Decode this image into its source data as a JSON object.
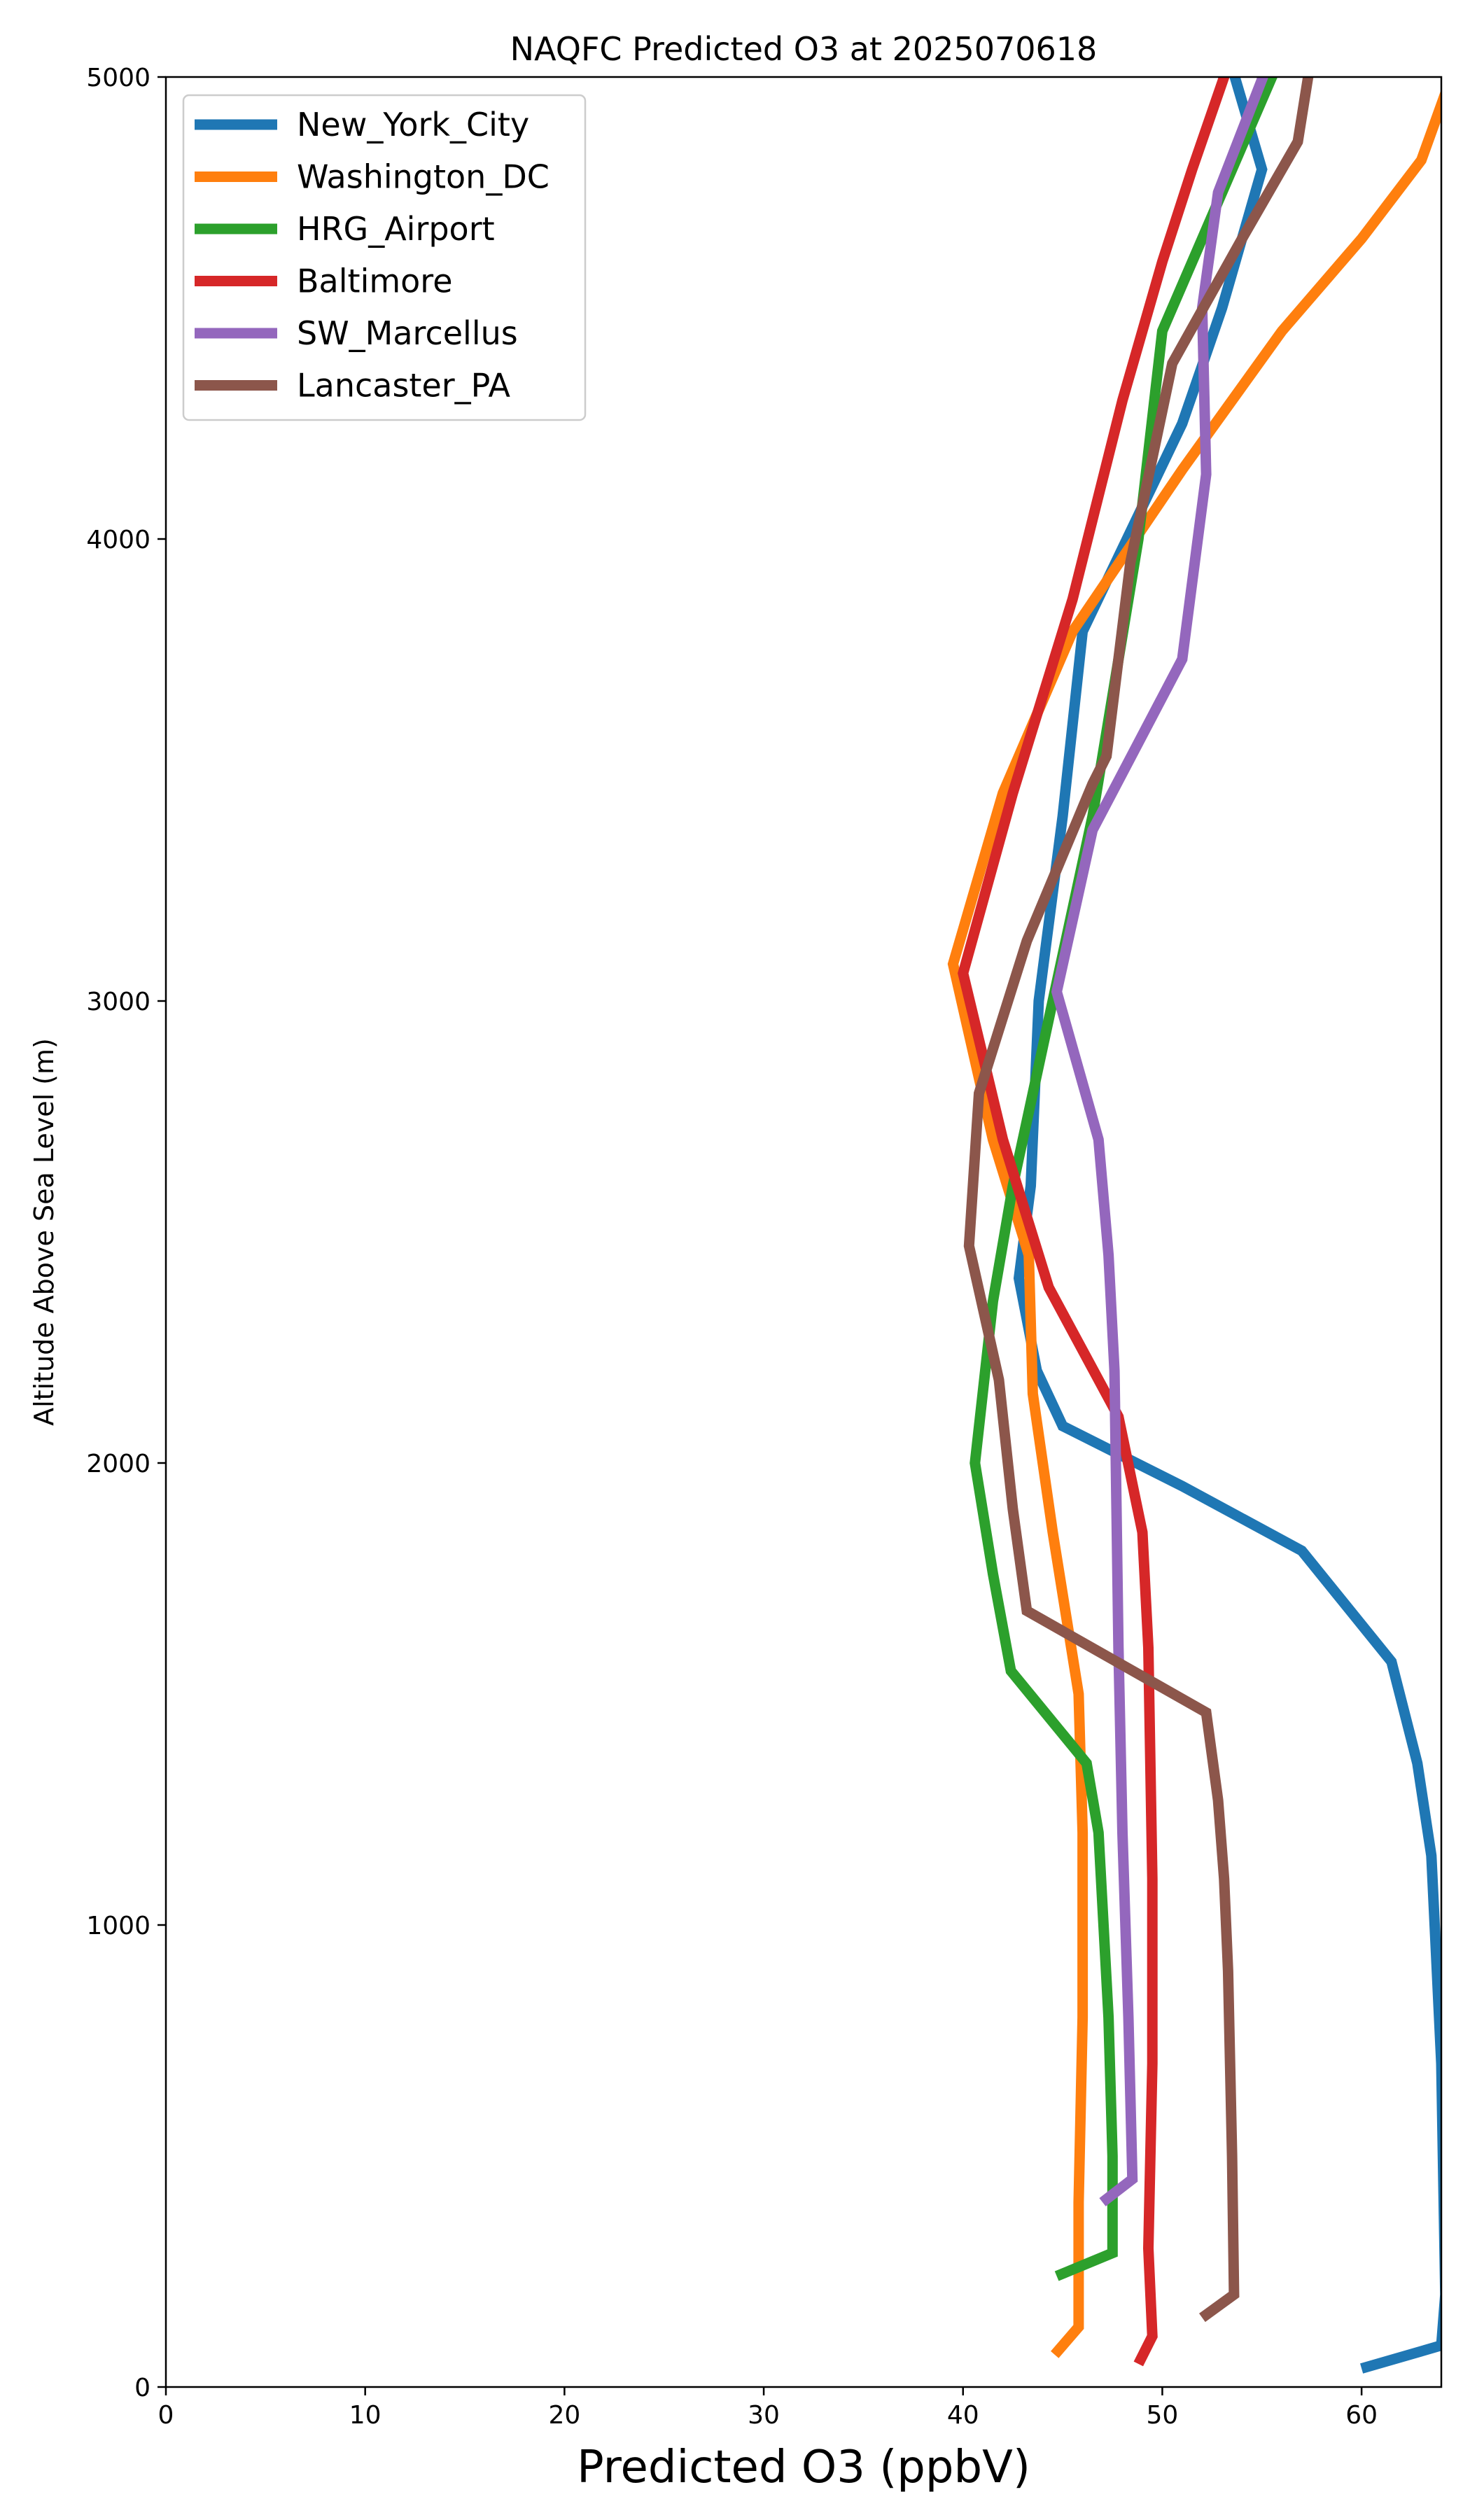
{
  "chart_data": {
    "type": "line",
    "title": "NAQFC Predicted O3 at 2025070618",
    "xlabel": "Predicted O3 (ppbV)",
    "ylabel": "Altitude Above Sea Level (m)",
    "xlim": [
      0,
      64
    ],
    "ylim": [
      0,
      5000
    ],
    "xticks": [
      0,
      10,
      20,
      30,
      40,
      50,
      60
    ],
    "yticks": [
      0,
      1000,
      2000,
      3000,
      4000,
      5000
    ],
    "grid": false,
    "legend_position": "top-left",
    "series": [
      {
        "name": "New_York_City",
        "color": "#1f77b4",
        "points": [
          [
            60.0,
            40
          ],
          [
            64.0,
            90
          ],
          [
            64.2,
            200
          ],
          [
            64.0,
            700
          ],
          [
            63.5,
            1150
          ],
          [
            62.8,
            1350
          ],
          [
            61.5,
            1570
          ],
          [
            57.0,
            1810
          ],
          [
            51.0,
            1950
          ],
          [
            45.0,
            2080
          ],
          [
            43.7,
            2200
          ],
          [
            42.8,
            2400
          ],
          [
            43.4,
            2600
          ],
          [
            43.8,
            3000
          ],
          [
            45.0,
            3400
          ],
          [
            46.0,
            3800
          ],
          [
            51.0,
            4250
          ],
          [
            53.0,
            4500
          ],
          [
            55.0,
            4800
          ],
          [
            53.3,
            5050
          ]
        ]
      },
      {
        "name": "Washington_DC",
        "color": "#ff7f0e",
        "points": [
          [
            44.6,
            70
          ],
          [
            45.8,
            130
          ],
          [
            45.8,
            400
          ],
          [
            46.0,
            800
          ],
          [
            46.0,
            1200
          ],
          [
            45.8,
            1500
          ],
          [
            44.5,
            1850
          ],
          [
            43.5,
            2150
          ],
          [
            43.3,
            2450
          ],
          [
            41.5,
            2700
          ],
          [
            39.5,
            3080
          ],
          [
            42.0,
            3450
          ],
          [
            45.5,
            3800
          ],
          [
            51.0,
            4150
          ],
          [
            56.0,
            4450
          ],
          [
            60.0,
            4650
          ],
          [
            63.0,
            4820
          ],
          [
            64.5,
            5000
          ]
        ]
      },
      {
        "name": "HRG_Airport",
        "color": "#2ca02c",
        "points": [
          [
            44.7,
            240
          ],
          [
            47.5,
            290
          ],
          [
            47.5,
            500
          ],
          [
            47.3,
            800
          ],
          [
            46.8,
            1200
          ],
          [
            46.2,
            1350
          ],
          [
            42.4,
            1550
          ],
          [
            41.5,
            1760
          ],
          [
            40.6,
            2000
          ],
          [
            41.5,
            2350
          ],
          [
            42.5,
            2600
          ],
          [
            43.5,
            2800
          ],
          [
            45.0,
            3100
          ],
          [
            46.5,
            3400
          ],
          [
            48.8,
            4000
          ],
          [
            50.0,
            4450
          ],
          [
            52.5,
            4700
          ],
          [
            56.0,
            5050
          ]
        ]
      },
      {
        "name": "Baltimore",
        "color": "#d62728",
        "points": [
          [
            48.8,
            50
          ],
          [
            49.5,
            110
          ],
          [
            49.3,
            300
          ],
          [
            49.5,
            700
          ],
          [
            49.5,
            1100
          ],
          [
            49.3,
            1600
          ],
          [
            49.0,
            1850
          ],
          [
            47.8,
            2100
          ],
          [
            44.3,
            2380
          ],
          [
            42.0,
            2700
          ],
          [
            40.0,
            3060
          ],
          [
            42.5,
            3450
          ],
          [
            45.5,
            3870
          ],
          [
            48.0,
            4300
          ],
          [
            50.0,
            4600
          ],
          [
            51.5,
            4800
          ],
          [
            53.5,
            5050
          ]
        ]
      },
      {
        "name": "SW_Marcellus",
        "color": "#9467bd",
        "points": [
          [
            47.0,
            400
          ],
          [
            48.5,
            450
          ],
          [
            48.3,
            800
          ],
          [
            48.0,
            1200
          ],
          [
            47.8,
            1600
          ],
          [
            47.7,
            1900
          ],
          [
            47.6,
            2200
          ],
          [
            47.3,
            2450
          ],
          [
            46.8,
            2700
          ],
          [
            44.7,
            3020
          ],
          [
            46.5,
            3370
          ],
          [
            51.0,
            3740
          ],
          [
            52.2,
            4140
          ],
          [
            52.0,
            4500
          ],
          [
            52.8,
            4750
          ],
          [
            55.5,
            5050
          ]
        ]
      },
      {
        "name": "Lancaster_PA",
        "color": "#8c564b",
        "points": [
          [
            52.0,
            150
          ],
          [
            53.6,
            200
          ],
          [
            53.5,
            500
          ],
          [
            53.3,
            900
          ],
          [
            53.1,
            1100
          ],
          [
            52.8,
            1270
          ],
          [
            52.2,
            1460
          ],
          [
            43.2,
            1680
          ],
          [
            42.5,
            1900
          ],
          [
            41.8,
            2180
          ],
          [
            40.3,
            2470
          ],
          [
            40.8,
            2800
          ],
          [
            43.2,
            3130
          ],
          [
            46.5,
            3470
          ],
          [
            47.2,
            3530
          ],
          [
            48.4,
            3950
          ],
          [
            50.5,
            4380
          ],
          [
            54.0,
            4650
          ],
          [
            56.8,
            4860
          ],
          [
            57.5,
            5050
          ]
        ]
      }
    ]
  }
}
